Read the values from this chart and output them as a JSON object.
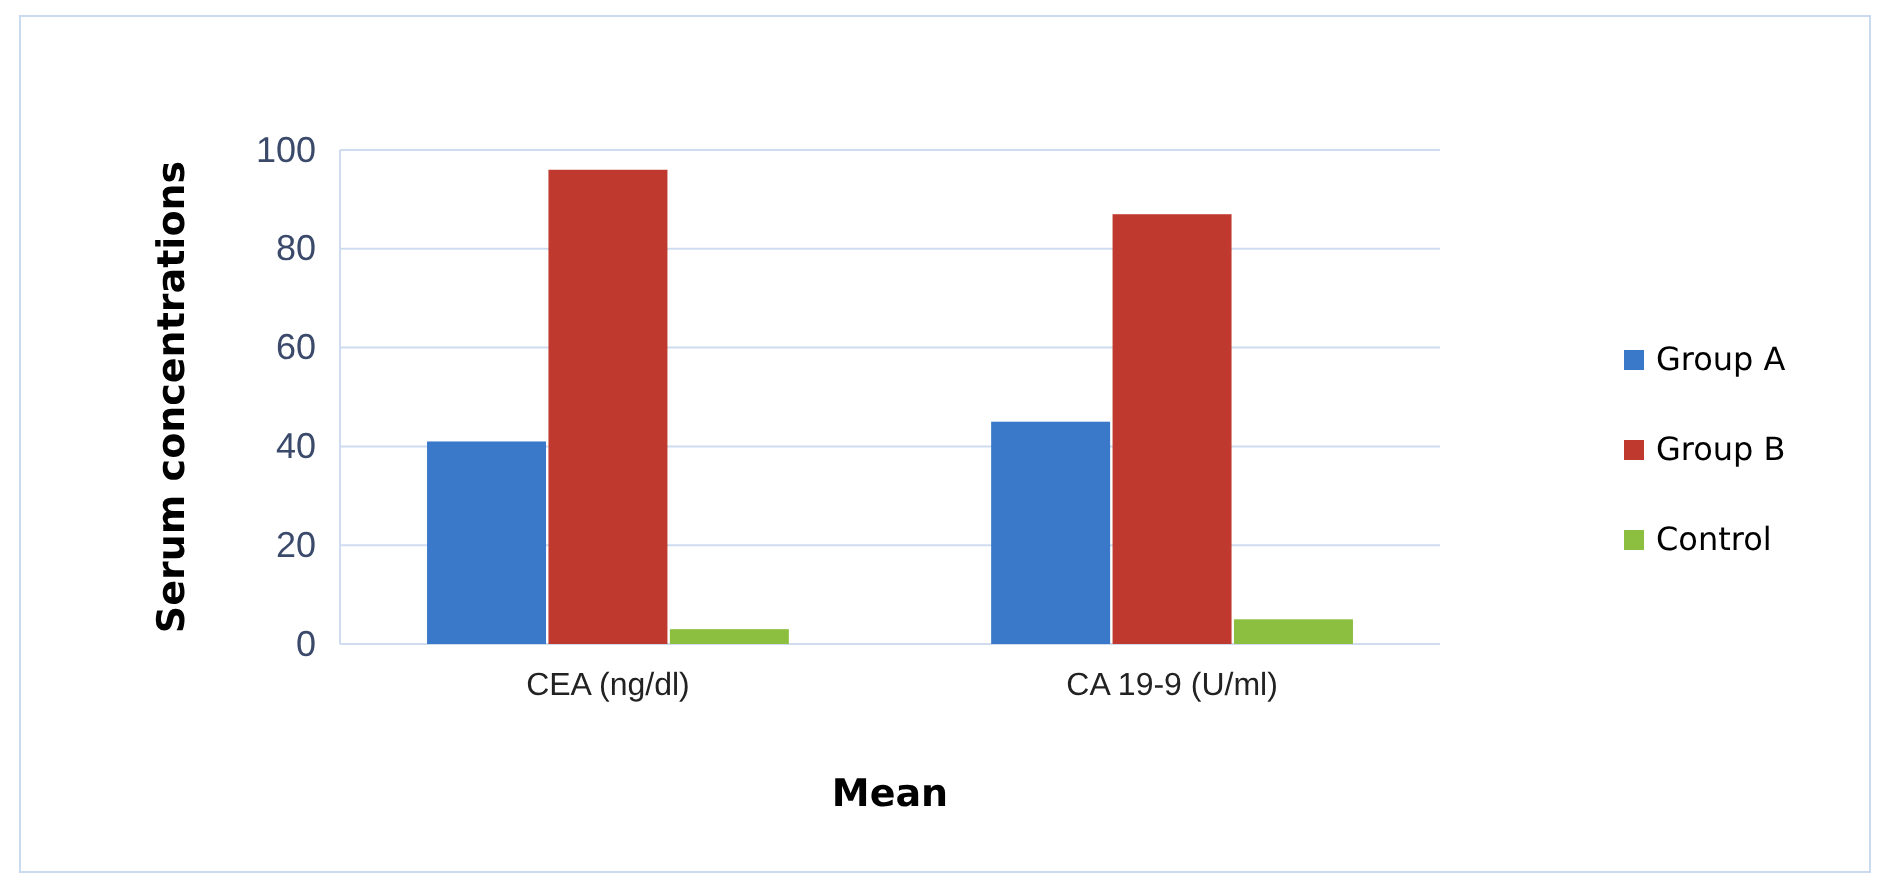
{
  "chart_data": {
    "type": "bar",
    "xlabel": "Mean",
    "ylabel": "Serum concentrations",
    "categories": [
      "CEA (ng/dl)",
      "CA 19-9 (U/ml)"
    ],
    "series": [
      {
        "name": "Group A",
        "color": "#3a78c9",
        "values": [
          41,
          45
        ]
      },
      {
        "name": "Group B",
        "color": "#c0392f",
        "values": [
          96,
          87
        ]
      },
      {
        "name": "Control",
        "color": "#8cbf3f",
        "values": [
          3,
          5
        ]
      }
    ],
    "ylim": [
      0,
      100
    ],
    "yticks": [
      0,
      20,
      40,
      60,
      80,
      100
    ],
    "grid": "y",
    "legend": "right"
  }
}
